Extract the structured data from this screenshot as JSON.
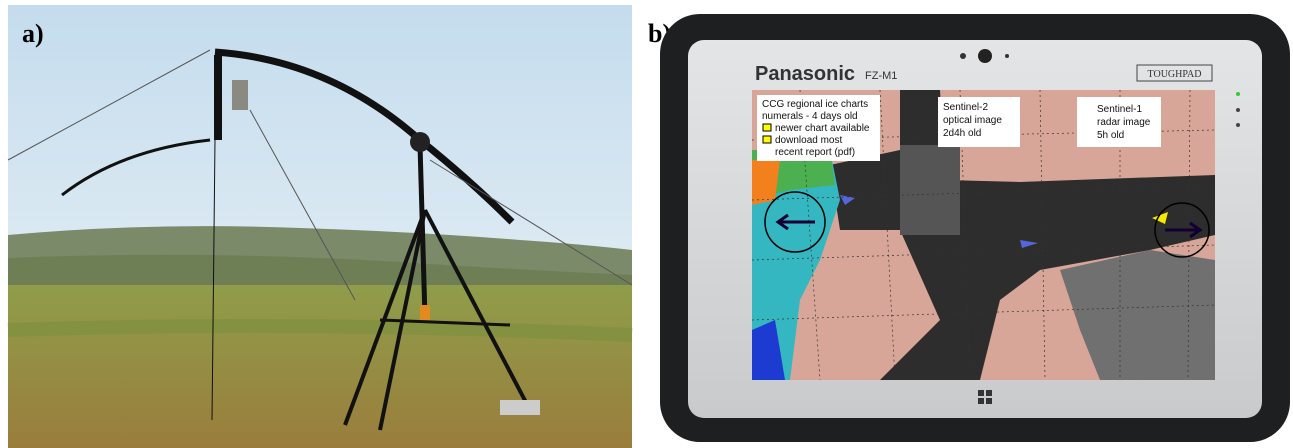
{
  "panels": [
    {
      "label": "a)"
    },
    {
      "label": "b)",
      "device": {
        "brand": "Panasonic",
        "model": "FZ-M1",
        "badge": "TOUGHPAD"
      },
      "map": {
        "ice_chart_box": {
          "lines": [
            "CCG regional ice charts",
            "numerals - 4 days old"
          ],
          "legend": [
            "newer chart available",
            "download most",
            "recent report (pdf)"
          ]
        },
        "sentinel2_box": {
          "lines": [
            "Sentinel-2",
            "optical image",
            "2d4h old"
          ]
        },
        "sentinel1_box": {
          "lines": [
            "Sentinel-1",
            "radar image",
            "5h old"
          ]
        }
      }
    }
  ]
}
